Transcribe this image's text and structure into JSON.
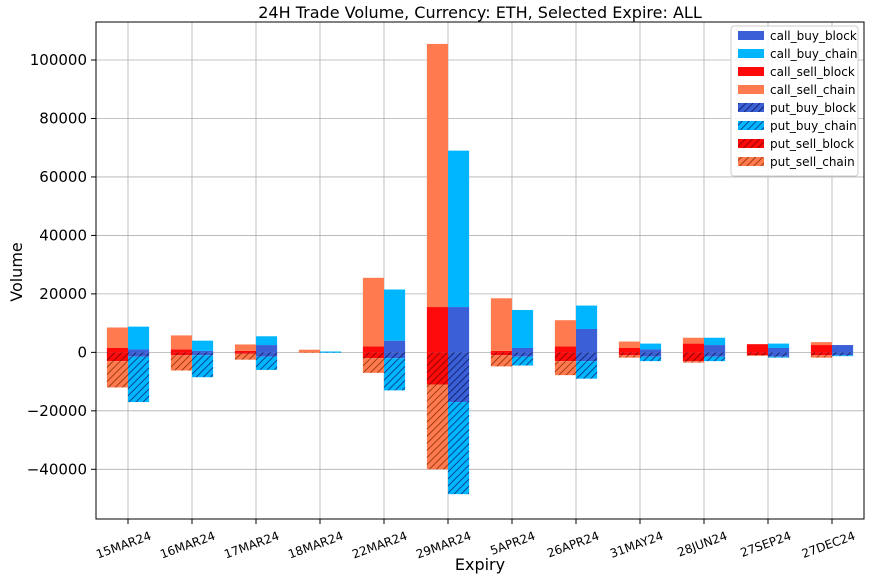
{
  "chart_data": {
    "type": "bar",
    "title": "24H Trade Volume, Currency: ETH, Selected Expire: ALL",
    "xlabel": "Expiry",
    "ylabel": "Volume",
    "ylim": [
      -57000,
      113000
    ],
    "yticks": [
      -40000,
      -20000,
      0,
      20000,
      40000,
      60000,
      80000,
      100000
    ],
    "grid": true,
    "legend_position": "top-right",
    "categories": [
      "15MAR24",
      "16MAR24",
      "17MAR24",
      "18MAR24",
      "22MAR24",
      "29MAR24",
      "5APR24",
      "26APR24",
      "31MAY24",
      "28JUN24",
      "27SEP24",
      "27DEC24"
    ],
    "series": [
      {
        "name": "call_buy_block",
        "color": "#3a5fd6",
        "hatch": false,
        "group": "buy",
        "stack": "positive",
        "values": [
          1000,
          500,
          2500,
          0,
          4000,
          15500,
          1500,
          8000,
          1000,
          2500,
          1500,
          2500
        ]
      },
      {
        "name": "call_buy_chain",
        "color": "#00b7ff",
        "hatch": false,
        "group": "buy",
        "stack": "positive",
        "values": [
          7800,
          3500,
          3000,
          300,
          17500,
          53500,
          13000,
          8000,
          2000,
          2500,
          1500,
          0
        ]
      },
      {
        "name": "call_sell_block",
        "color": "#ff0a0a",
        "hatch": false,
        "group": "sell",
        "stack": "positive",
        "values": [
          1500,
          1000,
          500,
          0,
          2000,
          15500,
          500,
          2000,
          1500,
          3000,
          2800,
          2500
        ]
      },
      {
        "name": "call_sell_chain",
        "color": "#ff7b4f",
        "hatch": false,
        "group": "sell",
        "stack": "positive",
        "values": [
          7000,
          4800,
          2200,
          900,
          23500,
          90000,
          18000,
          9000,
          2200,
          2000,
          0,
          1000
        ]
      },
      {
        "name": "put_buy_block",
        "color": "#3a5fd6",
        "hatch": true,
        "group": "buy",
        "stack": "negative",
        "values": [
          -1500,
          -1000,
          -1500,
          0,
          -2000,
          -17000,
          -1500,
          -3000,
          -1500,
          -1500,
          -1500,
          -1000
        ]
      },
      {
        "name": "put_buy_chain",
        "color": "#00b7ff",
        "hatch": true,
        "group": "buy",
        "stack": "negative",
        "values": [
          -15500,
          -7500,
          -4500,
          -100,
          -11000,
          -31500,
          -3000,
          -6000,
          -1500,
          -1500,
          -300,
          -300
        ]
      },
      {
        "name": "put_sell_block",
        "color": "#ff0a0a",
        "hatch": true,
        "group": "sell",
        "stack": "negative",
        "values": [
          -3000,
          -1000,
          -500,
          0,
          -2000,
          -11000,
          -1000,
          -3000,
          -1000,
          -3000,
          -1000,
          -1000
        ]
      },
      {
        "name": "put_sell_chain",
        "color": "#ff7b4f",
        "hatch": true,
        "group": "sell",
        "stack": "negative",
        "values": [
          -9000,
          -5200,
          -2000,
          -100,
          -5000,
          -29000,
          -3800,
          -4800,
          -800,
          -500,
          -200,
          -800
        ]
      }
    ]
  }
}
